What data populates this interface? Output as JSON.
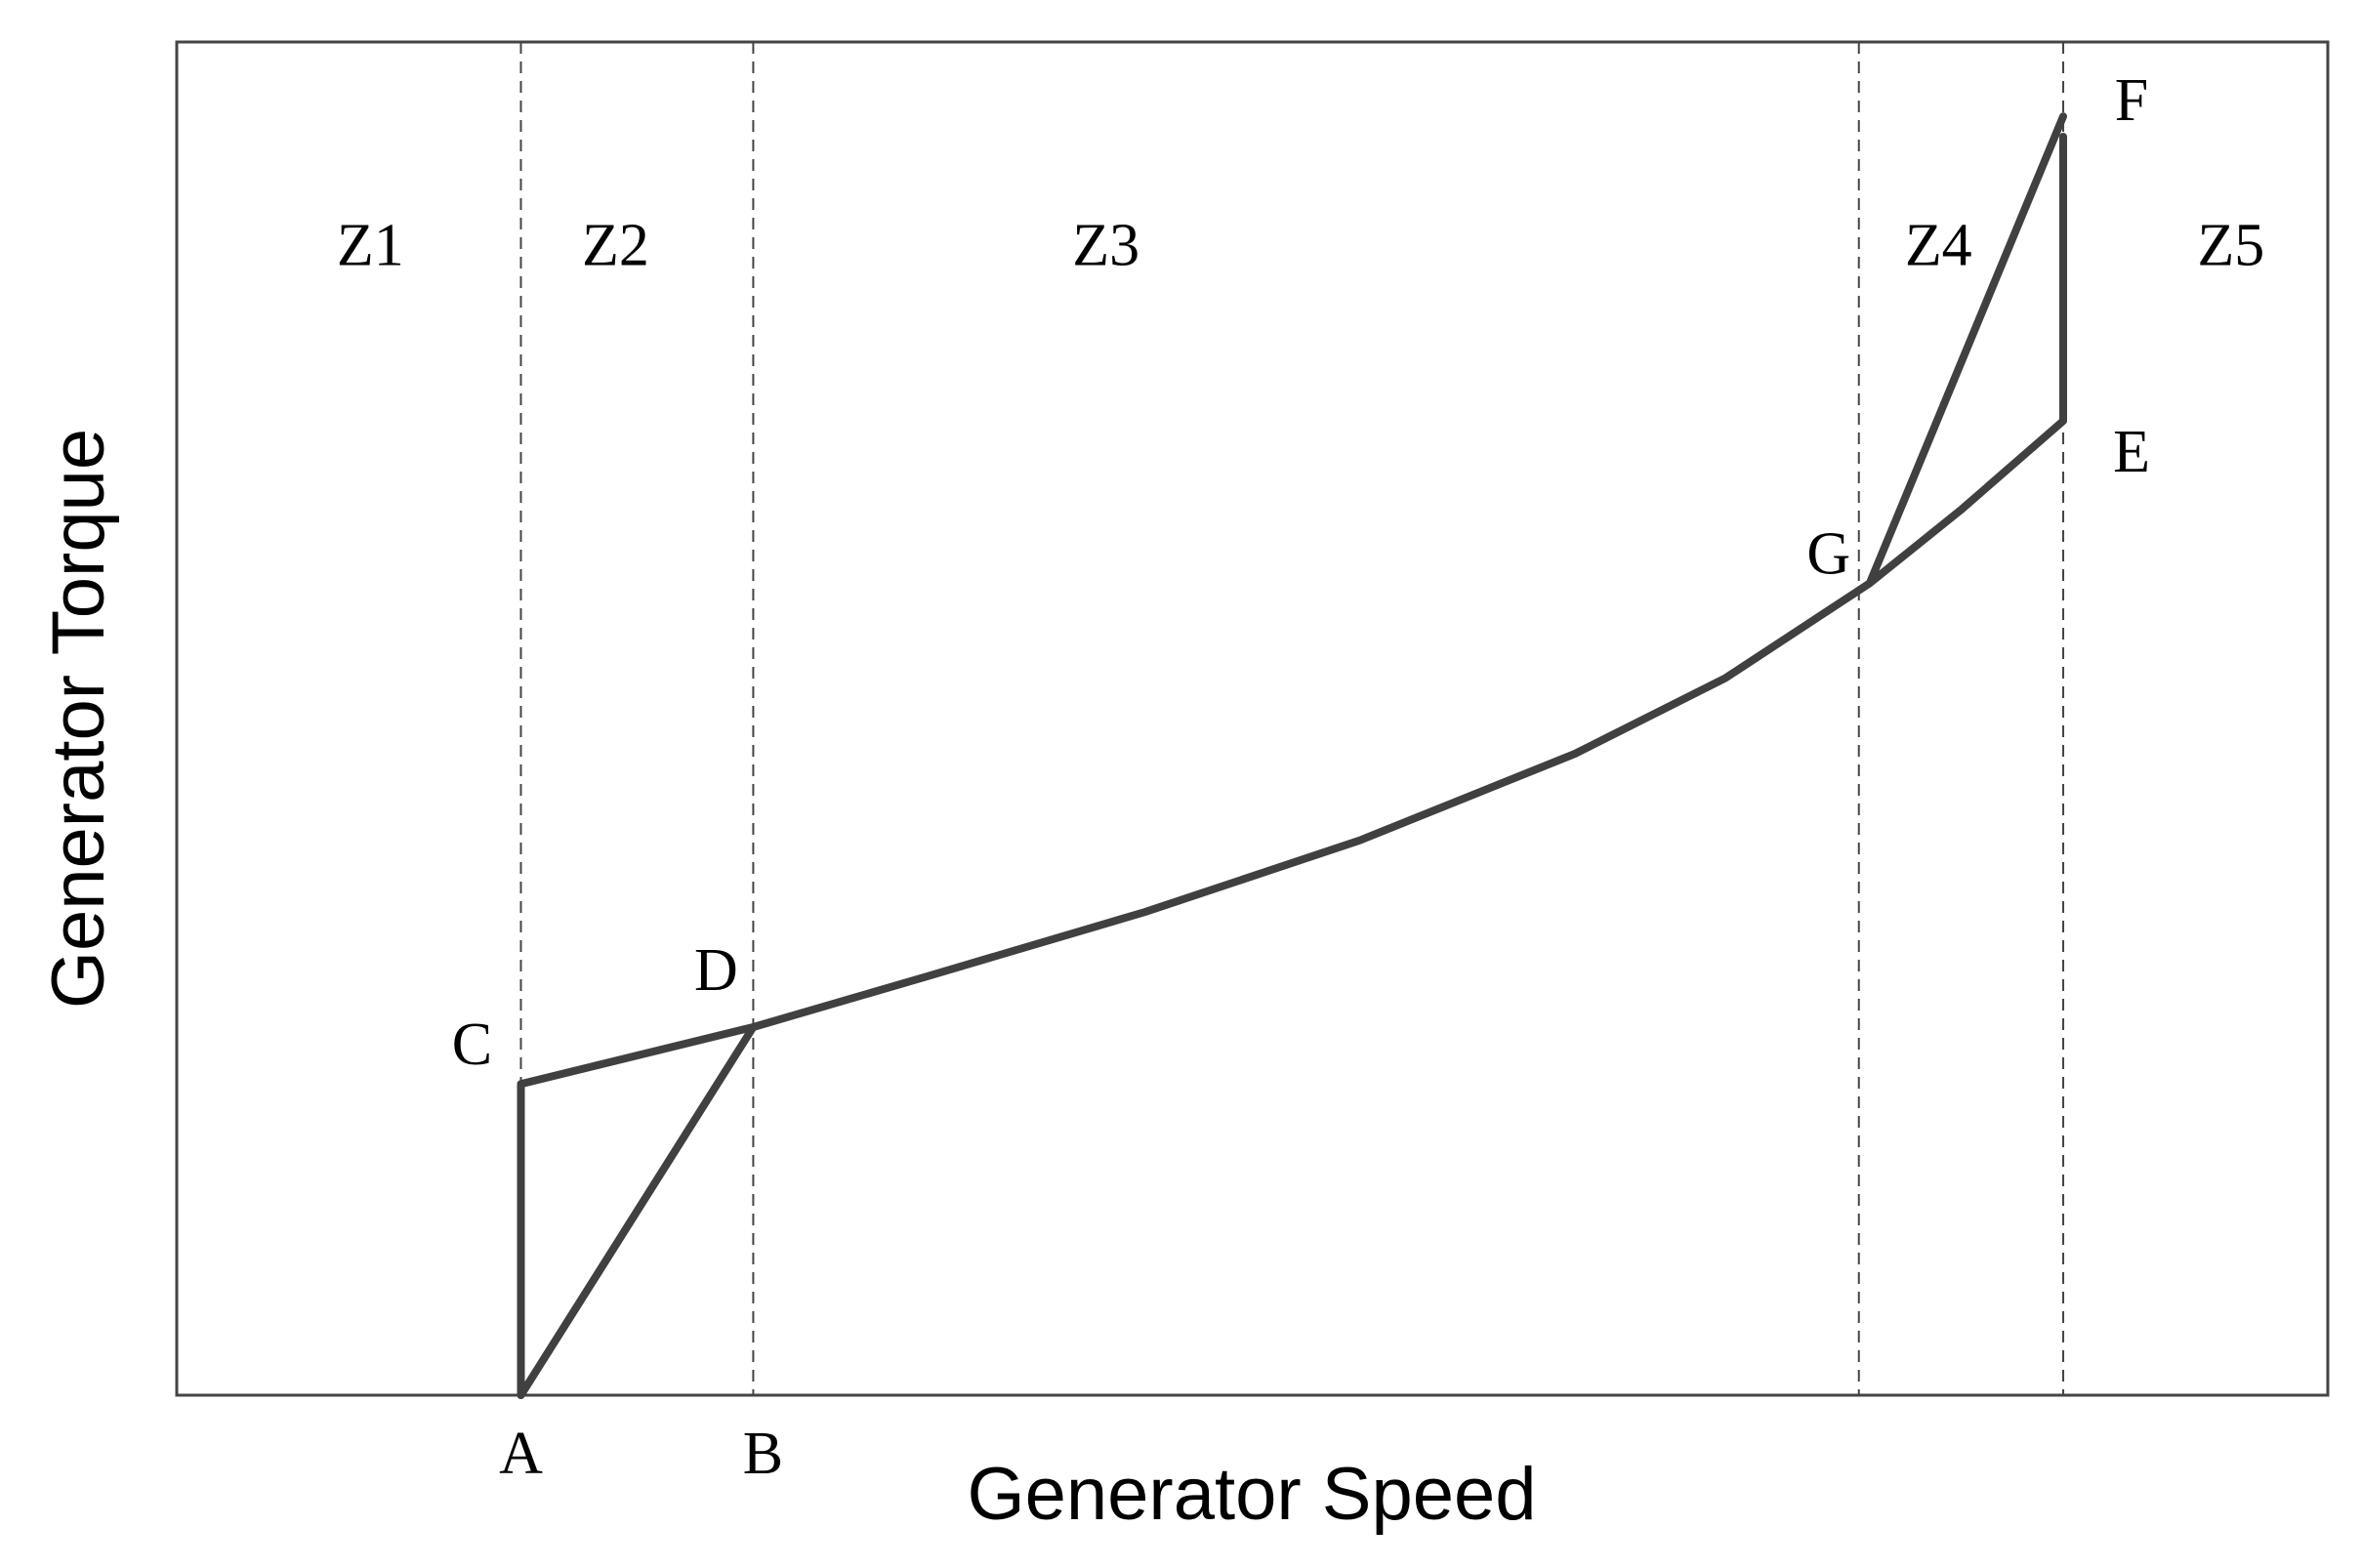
{
  "chart_data": {
    "type": "line",
    "title": "",
    "xlabel": "Generator Speed",
    "ylabel": "Generator Torque",
    "xlim": [
      0,
      1
    ],
    "ylim": [
      0,
      1
    ],
    "x_ticks": [
      {
        "label": "A",
        "x": 0.16
      },
      {
        "label": "B",
        "x": 0.268
      }
    ],
    "zone_boundaries": [
      0.16,
      0.268,
      0.782,
      0.877
    ],
    "zones": [
      {
        "label": "Z1",
        "x": 0.09
      },
      {
        "label": "Z2",
        "x": 0.204
      },
      {
        "label": "Z3",
        "x": 0.432
      },
      {
        "label": "Z4",
        "x": 0.819
      },
      {
        "label": "Z5",
        "x": 0.955
      }
    ],
    "zone_label_y": 0.835,
    "points": [
      {
        "label": "A",
        "x": 0.16,
        "y": 0.0
      },
      {
        "label": "C",
        "x": 0.16,
        "y": 0.23
      },
      {
        "label": "D",
        "x": 0.268,
        "y": 0.272
      },
      {
        "label": "G",
        "x": 0.787,
        "y": 0.6
      },
      {
        "label": "E",
        "x": 0.877,
        "y": 0.72
      },
      {
        "label": "F",
        "x": 0.877,
        "y": 0.935
      }
    ],
    "series": [
      {
        "values": [
          [
            0.16,
            0.0
          ],
          [
            0.16,
            0.23
          ],
          [
            0.268,
            0.272
          ],
          [
            0.35,
            0.31
          ],
          [
            0.45,
            0.357
          ],
          [
            0.55,
            0.41
          ],
          [
            0.65,
            0.474
          ],
          [
            0.72,
            0.53
          ],
          [
            0.787,
            0.6
          ],
          [
            0.83,
            0.655
          ],
          [
            0.877,
            0.72
          ],
          [
            0.877,
            0.93
          ]
        ]
      },
      {
        "values": [
          [
            0.16,
            0.0
          ],
          [
            0.268,
            0.272
          ]
        ]
      },
      {
        "values": [
          [
            0.787,
            0.6
          ],
          [
            0.877,
            0.945
          ]
        ]
      }
    ],
    "grid": false,
    "legend": "none"
  },
  "colors": {
    "curve": "#404040",
    "frame": "#444444",
    "dashed": "#444444",
    "text": "#000000"
  }
}
